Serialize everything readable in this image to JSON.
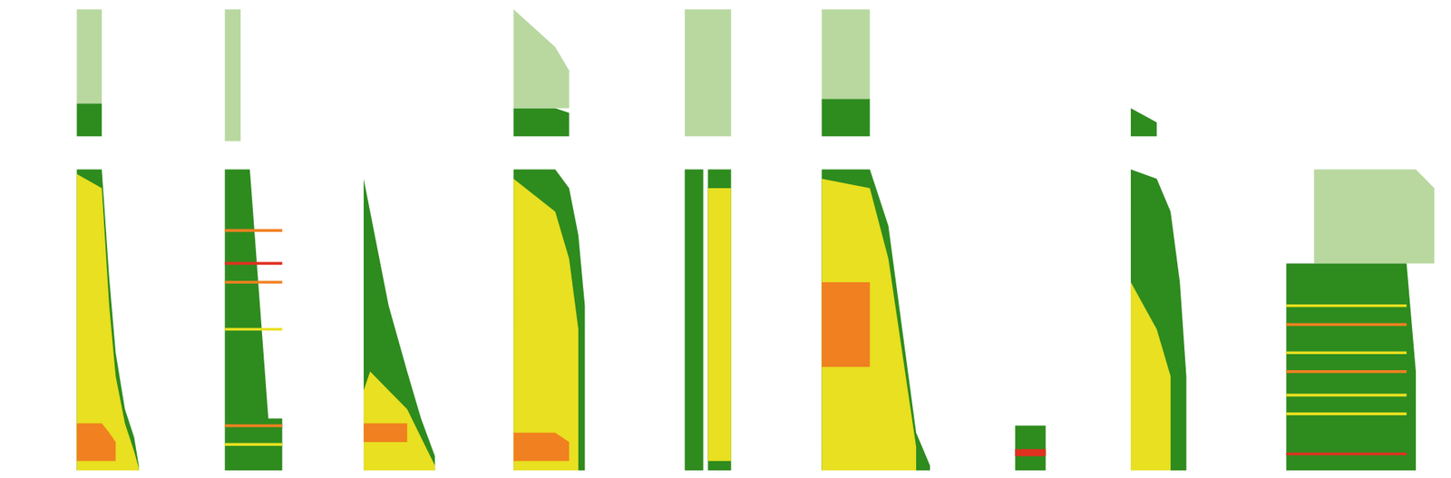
{
  "chart_data": {
    "type": "spectrogram",
    "xlim": [
      0,
      1568
    ],
    "ylim": [
      0,
      100
    ],
    "tick_labels": false,
    "grid": false,
    "events": [
      {
        "x": [
          83,
          110,
          118,
          125,
          135,
          145,
          150
        ],
        "bands": [
          {
            "color": "#2e8b1e",
            "low": [
              0,
              0,
              0,
              0,
              0,
              0,
              0
            ],
            "high": [
              64,
              64,
              41,
              25,
              13,
              7,
              1
            ]
          },
          {
            "color": "#e8e020",
            "low": [
              0,
              0,
              0,
              0,
              0,
              0,
              0
            ],
            "high": [
              63,
              60,
              35,
              20,
              10,
              4,
              0.5
            ]
          },
          {
            "color": "#f08020",
            "low": [
              2,
              2,
              2,
              2,
              null,
              null,
              null
            ],
            "high": [
              10,
              10,
              8,
              6,
              null,
              null,
              null
            ]
          },
          {
            "color": "#2e8b1e",
            "low": [
              71,
              71,
              null,
              null,
              null,
              null,
              null
            ],
            "high": [
              78,
              78,
              null,
              null,
              null,
              null,
              null
            ]
          },
          {
            "color": "#b8d8a0",
            "low": [
              78,
              78,
              null,
              null,
              null,
              null,
              null
            ],
            "high": [
              98,
              98,
              null,
              null,
              null,
              null,
              null
            ]
          }
        ]
      },
      {
        "x": [
          243,
          258,
          260,
          270,
          290,
          305
        ],
        "bands": [
          {
            "color": "#2e8b1e",
            "low": [
              0,
              0,
              0,
              0,
              0,
              0
            ],
            "high": [
              64,
              64,
              64,
              64,
              11,
              11
            ]
          },
          {
            "color": "#e03020",
            "low": [
              43.7,
              43.7,
              43.7,
              43.7,
              43.7,
              43.7
            ],
            "high": [
              44.3,
              44.3,
              44.3,
              44.3,
              44.3,
              44.3
            ]
          },
          {
            "color": "#f08020",
            "low": [
              39.7,
              39.7,
              39.7,
              39.7,
              39.7,
              39.7
            ],
            "high": [
              40.3,
              40.3,
              40.3,
              40.3,
              40.3,
              40.3
            ]
          },
          {
            "color": "#f08020",
            "low": [
              50.7,
              50.7,
              50.7,
              50.7,
              50.7,
              50.7
            ],
            "high": [
              51.3,
              51.3,
              51.3,
              51.3,
              51.3,
              51.3
            ]
          },
          {
            "color": "#e8e020",
            "low": [
              29.7,
              29.7,
              29.7,
              29.7,
              29.7,
              29.7
            ],
            "high": [
              30.3,
              30.3,
              30.3,
              30.3,
              30.3,
              30.3
            ]
          },
          {
            "color": "#f08020",
            "low": [
              9.2,
              9.2,
              9.2,
              9.2,
              9.2,
              9.2
            ],
            "high": [
              9.8,
              9.8,
              9.8,
              9.8,
              9.8,
              9.8
            ]
          },
          {
            "color": "#e8e020",
            "low": [
              5.2,
              5.2,
              5.2,
              5.2,
              5.2,
              5.2
            ],
            "high": [
              5.8,
              5.8,
              5.8,
              5.8,
              5.8,
              5.8
            ]
          },
          {
            "color": "#b8d8a0",
            "low": [
              70,
              70,
              70,
              null,
              null,
              null
            ],
            "high": [
              98,
              98,
              98,
              null,
              null,
              null
            ]
          }
        ]
      },
      {
        "x": [
          393,
          400,
          420,
          440,
          455,
          470
        ],
        "bands": [
          {
            "color": "#2e8b1e",
            "low": [
              0,
              0,
              0,
              0,
              0,
              0
            ],
            "high": [
              62,
              55,
              35,
              21,
              11,
              3
            ]
          },
          {
            "color": "#e8e020",
            "low": [
              0,
              0,
              0,
              0,
              0,
              0
            ],
            "high": [
              17,
              21,
              17,
              13,
              7,
              1
            ]
          },
          {
            "color": "#f08020",
            "low": [
              6,
              6,
              6,
              6,
              null,
              null
            ],
            "high": [
              10,
              10,
              10,
              10,
              null,
              null
            ]
          }
        ]
      },
      {
        "x": [
          555,
          600,
          615,
          625,
          632
        ],
        "bands": [
          {
            "color": "#2e8b1e",
            "low": [
              0,
              0,
              0,
              0,
              0
            ],
            "high": [
              64,
              64,
              60,
              50,
              35
            ]
          },
          {
            "color": "#e8e020",
            "low": [
              0,
              0,
              0,
              0,
              null
            ],
            "high": [
              62,
              55,
              45,
              30,
              null
            ]
          },
          {
            "color": "#f08020",
            "low": [
              2,
              2,
              2,
              null,
              null
            ],
            "high": [
              8,
              8,
              6,
              null,
              null
            ]
          },
          {
            "color": "#2e8b1e",
            "low": [
              71,
              71,
              71,
              null,
              null
            ],
            "high": [
              77,
              77,
              76,
              null,
              null
            ]
          },
          {
            "color": "#b8d8a0",
            "low": [
              77,
              77,
              77,
              null,
              null
            ],
            "high": [
              98,
              90,
              85,
              null,
              null
            ]
          }
        ]
      },
      {
        "x": [
          740,
          760,
          765,
          790
        ],
        "bands": [
          {
            "color": "#2e8b1e",
            "low": [
              0,
              0,
              null,
              null
            ],
            "high": [
              64,
              64,
              null,
              null
            ]
          },
          {
            "color": "#2e8b1e",
            "low": [
              null,
              null,
              0,
              0
            ],
            "high": [
              null,
              null,
              64,
              64
            ]
          },
          {
            "color": "#e8e020",
            "low": [
              null,
              null,
              2,
              2
            ],
            "high": [
              null,
              null,
              60,
              60
            ]
          },
          {
            "color": "#b8d8a0",
            "low": [
              71,
              71,
              71,
              71
            ],
            "high": [
              98,
              98,
              98,
              98
            ]
          }
        ]
      },
      {
        "x": [
          888,
          940,
          960,
          975,
          990,
          1005
        ],
        "bands": [
          {
            "color": "#2e8b1e",
            "low": [
              0,
              0,
              0,
              0,
              0,
              0
            ],
            "high": [
              64,
              64,
              52,
              30,
              8,
              1
            ]
          },
          {
            "color": "#e8e020",
            "low": [
              0,
              0,
              0,
              0,
              0,
              null
            ],
            "high": [
              62,
              60,
              45,
              25,
              5,
              null
            ]
          },
          {
            "color": "#f08020",
            "low": [
              22,
              22,
              null,
              null,
              null,
              null
            ],
            "high": [
              40,
              40,
              null,
              null,
              null,
              null
            ]
          },
          {
            "color": "#2e8b1e",
            "low": [
              71,
              71,
              null,
              null,
              null,
              null
            ],
            "high": [
              79,
              79,
              null,
              null,
              null,
              null
            ]
          },
          {
            "color": "#b8d8a0",
            "low": [
              79,
              79,
              null,
              null,
              null,
              null
            ],
            "high": [
              98,
              98,
              null,
              null,
              null,
              null
            ]
          }
        ]
      },
      {
        "x": [
          1097,
          1130
        ],
        "bands": [
          {
            "color": "#2e8b1e",
            "low": [
              0,
              0
            ],
            "high": [
              9.5,
              9.5
            ]
          },
          {
            "color": "#e03020",
            "low": [
              3,
              3
            ],
            "high": [
              4.5,
              4.5
            ]
          }
        ]
      },
      {
        "x": [
          1222,
          1250,
          1265,
          1275,
          1282
        ],
        "bands": [
          {
            "color": "#2e8b1e",
            "low": [
              0,
              0,
              0,
              0,
              0
            ],
            "high": [
              64,
              62,
              55,
              40,
              20
            ]
          },
          {
            "color": "#e8e020",
            "low": [
              0,
              0,
              0,
              null,
              null
            ],
            "high": [
              40,
              30,
              20,
              null,
              null
            ]
          },
          {
            "color": "#2e8b1e",
            "low": [
              71,
              71,
              null,
              null,
              null
            ],
            "high": [
              77,
              74,
              null,
              null,
              null
            ]
          }
        ]
      },
      {
        "x": [
          1390,
          1420,
          1520,
          1530,
          1550
        ],
        "bands": [
          {
            "color": "#b8d8a0",
            "low": [
              null,
              44,
              44,
              44,
              44
            ],
            "high": [
              null,
              64,
              64,
              64,
              60
            ]
          },
          {
            "color": "#2e8b1e",
            "low": [
              0,
              0,
              0,
              0,
              null
            ],
            "high": [
              44,
              44,
              44,
              21,
              null
            ]
          },
          {
            "color": "#e8e020",
            "low": [
              34.7,
              34.7,
              34.7,
              null,
              null
            ],
            "high": [
              35.3,
              35.3,
              35.3,
              null,
              null
            ]
          },
          {
            "color": "#f08020",
            "low": [
              30.7,
              30.7,
              30.7,
              null,
              null
            ],
            "high": [
              31.3,
              31.3,
              31.3,
              null,
              null
            ]
          },
          {
            "color": "#e8e020",
            "low": [
              24.7,
              24.7,
              24.7,
              null,
              null
            ],
            "high": [
              25.3,
              25.3,
              25.3,
              null,
              null
            ]
          },
          {
            "color": "#f08020",
            "low": [
              20.7,
              20.7,
              20.7,
              null,
              null
            ],
            "high": [
              21.3,
              21.3,
              21.3,
              null,
              null
            ]
          },
          {
            "color": "#e8e020",
            "low": [
              15.7,
              15.7,
              15.7,
              null,
              null
            ],
            "high": [
              16.3,
              16.3,
              16.3,
              null,
              null
            ]
          },
          {
            "color": "#e8e020",
            "low": [
              11.7,
              11.7,
              11.7,
              null,
              null
            ],
            "high": [
              12.3,
              12.3,
              12.3,
              null,
              null
            ]
          },
          {
            "color": "#e03020",
            "low": [
              3.2,
              3.2,
              3.2,
              null,
              null
            ],
            "high": [
              3.8,
              3.8,
              3.8,
              null,
              null
            ]
          }
        ]
      }
    ]
  }
}
